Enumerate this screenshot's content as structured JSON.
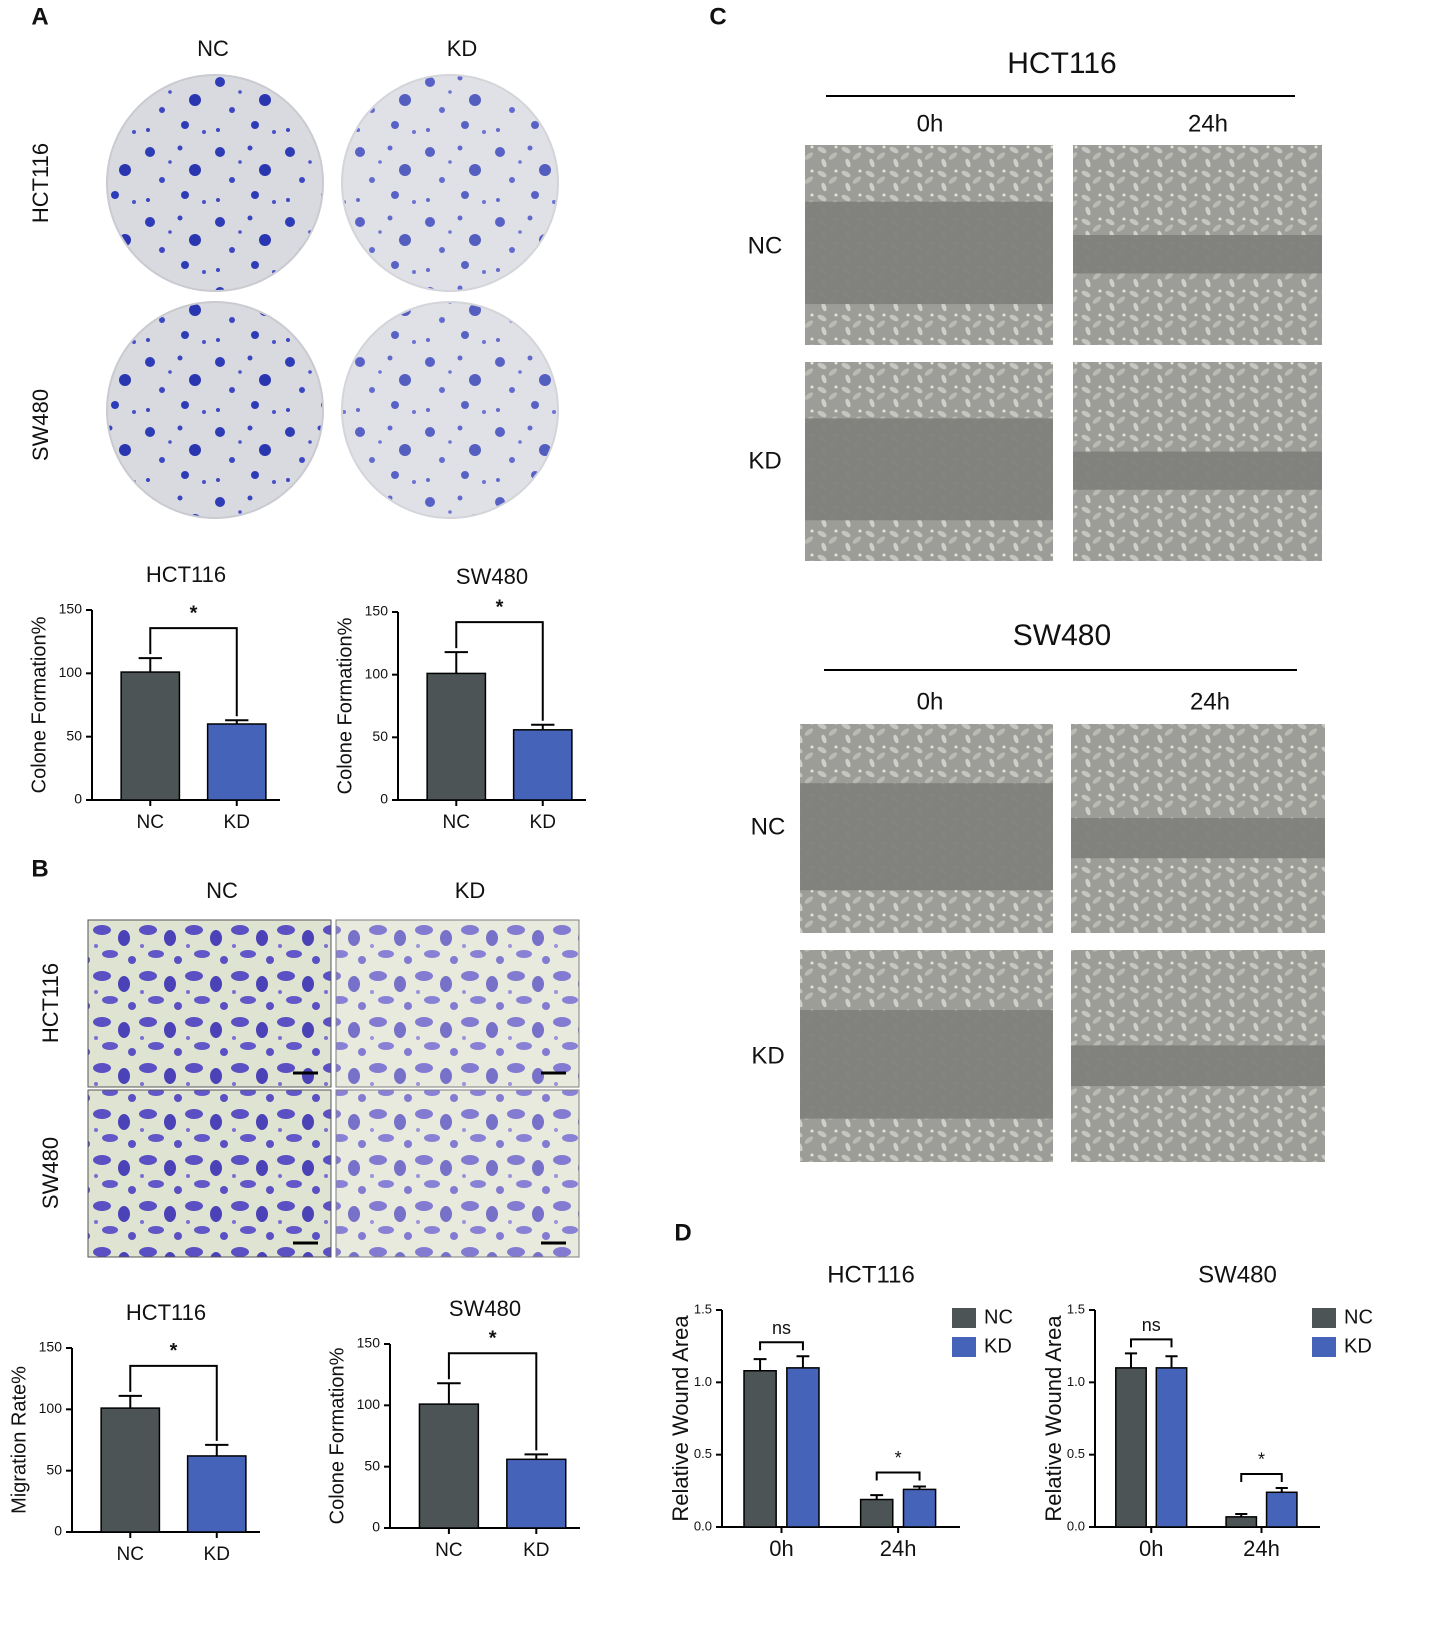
{
  "figure": {
    "A": {
      "letter": "A",
      "columns": [
        "NC",
        "KD"
      ],
      "rows": [
        "HCT116",
        "SW480"
      ]
    },
    "B": {
      "letter": "B",
      "columns": [
        "NC",
        "KD"
      ],
      "rows": [
        "HCT116",
        "SW480"
      ]
    },
    "C": {
      "letter": "C",
      "groups": [
        {
          "title": "HCT116",
          "columns": [
            "0h",
            "24h"
          ],
          "rows": [
            "NC",
            "KD"
          ]
        },
        {
          "title": "SW480",
          "columns": [
            "0h",
            "24h"
          ],
          "rows": [
            "NC",
            "KD"
          ]
        }
      ]
    },
    "D": {
      "letter": "D"
    }
  },
  "chart_data": [
    {
      "type": "bar",
      "title": "HCT116",
      "ylabel": "Colone Formation%",
      "categories": [
        "NC",
        "KD"
      ],
      "values": [
        101,
        60
      ],
      "errors": [
        11,
        3
      ],
      "colors": [
        "#4d5455",
        "#4563b8"
      ],
      "ylim": [
        0,
        150
      ],
      "yticks": [
        0,
        50,
        100,
        150
      ],
      "significance": [
        "*"
      ]
    },
    {
      "type": "bar",
      "title": "SW480",
      "ylabel": "Colone Formation%",
      "categories": [
        "NC",
        "KD"
      ],
      "values": [
        101,
        56
      ],
      "errors": [
        17,
        4
      ],
      "colors": [
        "#4d5455",
        "#4563b8"
      ],
      "ylim": [
        0,
        150
      ],
      "yticks": [
        0,
        50,
        100,
        150
      ],
      "significance": [
        "*"
      ]
    },
    {
      "type": "bar",
      "title": "HCT116",
      "ylabel": "Migration Rate%",
      "categories": [
        "NC",
        "KD"
      ],
      "values": [
        101,
        62
      ],
      "errors": [
        10,
        9
      ],
      "colors": [
        "#4d5455",
        "#4563b8"
      ],
      "ylim": [
        0,
        150
      ],
      "yticks": [
        0,
        50,
        100,
        150
      ],
      "significance": [
        "*"
      ]
    },
    {
      "type": "bar",
      "title": "SW480",
      "ylabel": "Colone Formation%",
      "categories": [
        "NC",
        "KD"
      ],
      "values": [
        101,
        56
      ],
      "errors": [
        17,
        4
      ],
      "colors": [
        "#4d5455",
        "#4563b8"
      ],
      "ylim": [
        0,
        150
      ],
      "yticks": [
        0,
        50,
        100,
        150
      ],
      "significance": [
        "*"
      ]
    },
    {
      "type": "bar",
      "title": "HCT116",
      "ylabel": "Relative Wound Area",
      "categories": [
        "0h",
        "24h"
      ],
      "series": [
        {
          "name": "NC",
          "color": "#4d5455",
          "values": [
            1.08,
            0.19
          ],
          "errors": [
            0.08,
            0.03
          ]
        },
        {
          "name": "KD",
          "color": "#4563b8",
          "values": [
            1.1,
            0.26
          ],
          "errors": [
            0.08,
            0.02
          ]
        }
      ],
      "ylim": [
        0,
        1.5
      ],
      "yticks": [
        {
          "value": 0,
          "label": "0.0"
        },
        0.5,
        {
          "value": 1,
          "label": "1.0"
        },
        1.5
      ],
      "significance": [
        "ns",
        "*"
      ]
    },
    {
      "type": "bar",
      "title": "SW480",
      "ylabel": "Relative Wound Area",
      "categories": [
        "0h",
        "24h"
      ],
      "series": [
        {
          "name": "NC",
          "color": "#4d5455",
          "values": [
            1.1,
            0.07
          ],
          "errors": [
            0.1,
            0.02
          ]
        },
        {
          "name": "KD",
          "color": "#4563b8",
          "values": [
            1.1,
            0.24
          ],
          "errors": [
            0.08,
            0.03
          ]
        }
      ],
      "ylim": [
        0,
        1.5
      ],
      "yticks": [
        {
          "value": 0,
          "label": "0.0"
        },
        0.5,
        {
          "value": 1,
          "label": "1.0"
        },
        1.5
      ],
      "significance": [
        "ns",
        "*"
      ]
    }
  ]
}
